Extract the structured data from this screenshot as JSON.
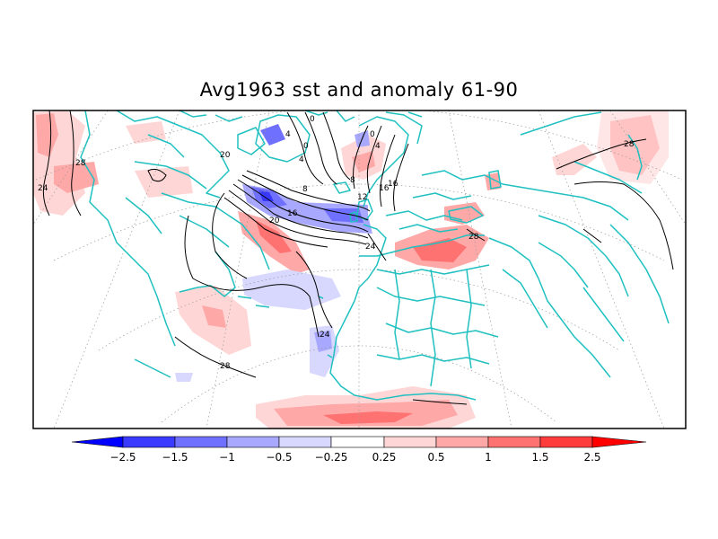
{
  "title": "Avg1963 sst and anomaly 61-90",
  "colorbar": {
    "tick_labels": [
      "−2.5",
      "−1.5",
      "−1",
      "−0.5",
      "−0.25",
      "0.25",
      "0.5",
      "1",
      "1.5",
      "2.5"
    ],
    "colors": {
      "below_-2.5": "#0000ff",
      "-2.5_to_-1.5": "#3a3aff",
      "-1.5_to_-1": "#7070ff",
      "-1_to_-0.5": "#a8a8ff",
      "-0.5_to_-0.25": "#d8d8ff",
      "-0.25_to_0.25": "#ffffff",
      "0.25_to_0.5": "#ffd6d6",
      "0.5_to_1": "#ffa8a8",
      "1_to_1.5": "#ff7272",
      "1.5_to_2.5": "#ff3c3c",
      "above_2.5": "#ff0000"
    }
  },
  "contour_labels": [
    "0",
    "4",
    "0",
    "4",
    "0",
    "4",
    "8",
    "8",
    "12",
    "16",
    "16",
    "16",
    "20",
    "20",
    "24",
    "24",
    "24",
    "28",
    "28",
    "28",
    "28"
  ],
  "colors": {
    "coastline": "#20c0c0",
    "contour": "#000000",
    "graticule": "#999999",
    "frame": "#000000"
  }
}
